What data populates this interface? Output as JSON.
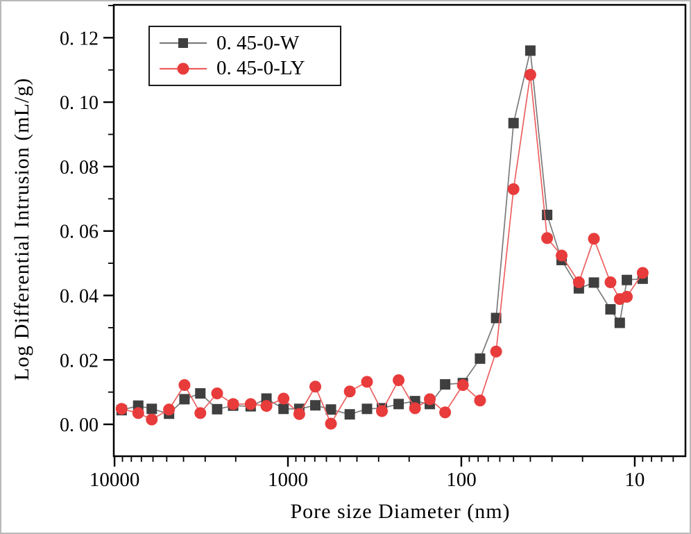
{
  "figure": {
    "background": "#ffffff",
    "frame_color": "#000000"
  },
  "chart_data": {
    "type": "line",
    "title": "",
    "xlabel": "Pore size Diameter (nm)",
    "ylabel": "Log Differential Intrusion (mL/g)",
    "x_scale": "log-reversed",
    "x_domain": [
      10100,
      5.1
    ],
    "x_major_ticks": [
      10000,
      1000,
      100,
      10
    ],
    "x_major_tick_labels": [
      "10000",
      "1000",
      "100",
      "10"
    ],
    "ylim": [
      -0.0099,
      0.1302
    ],
    "y_major_ticks": [
      0.0,
      0.02,
      0.04,
      0.06,
      0.08,
      0.1,
      0.12
    ],
    "y_major_tick_labels": [
      "0. 00",
      "0. 02",
      "0. 04",
      "0. 06",
      "0. 08",
      "0. 10",
      "0. 12"
    ],
    "y_minor_ticks": [
      0.01,
      0.03,
      0.05,
      0.07,
      0.09,
      0.11,
      0.13
    ],
    "grid": false,
    "legend_position": "top-left",
    "x": [
      9100,
      7300,
      6100,
      4850,
      3950,
      3200,
      2560,
      2070,
      1640,
      1330,
      1060,
      860,
      695,
      565,
      440,
      350,
      287,
      230,
      185,
      152,
      124,
      98,
      78,
      63,
      50,
      40,
      32,
      26.4,
      21,
      17.2,
      13.8,
      12.2,
      11.1,
      9.0
    ],
    "series": [
      {
        "name": "0. 45-0-W",
        "marker": "square",
        "color": "#3f3f3f",
        "line_color": "#7a7a7a",
        "values": [
          0.0044,
          0.0058,
          0.0048,
          0.0033,
          0.0078,
          0.0096,
          0.0047,
          0.0058,
          0.0056,
          0.008,
          0.0048,
          0.0048,
          0.0059,
          0.0046,
          0.0031,
          0.0048,
          0.005,
          0.0063,
          0.0072,
          0.0063,
          0.0124,
          0.0128,
          0.0204,
          0.033,
          0.0935,
          0.116,
          0.065,
          0.051,
          0.0422,
          0.044,
          0.0357,
          0.0315,
          0.0448,
          0.0452
        ]
      },
      {
        "name": "0. 45-0-LY",
        "marker": "circle",
        "color": "#e83b3b",
        "line_color": "#ec5f5f",
        "values": [
          0.0048,
          0.0035,
          0.0015,
          0.0046,
          0.0122,
          0.0035,
          0.0096,
          0.0063,
          0.0063,
          0.0057,
          0.008,
          0.0032,
          0.0117,
          0.0002,
          0.0102,
          0.0132,
          0.0041,
          0.0137,
          0.005,
          0.0078,
          0.0037,
          0.0122,
          0.0074,
          0.0226,
          0.073,
          0.1085,
          0.0578,
          0.0524,
          0.0441,
          0.0576,
          0.0441,
          0.0389,
          0.0396,
          0.047
        ]
      }
    ]
  }
}
